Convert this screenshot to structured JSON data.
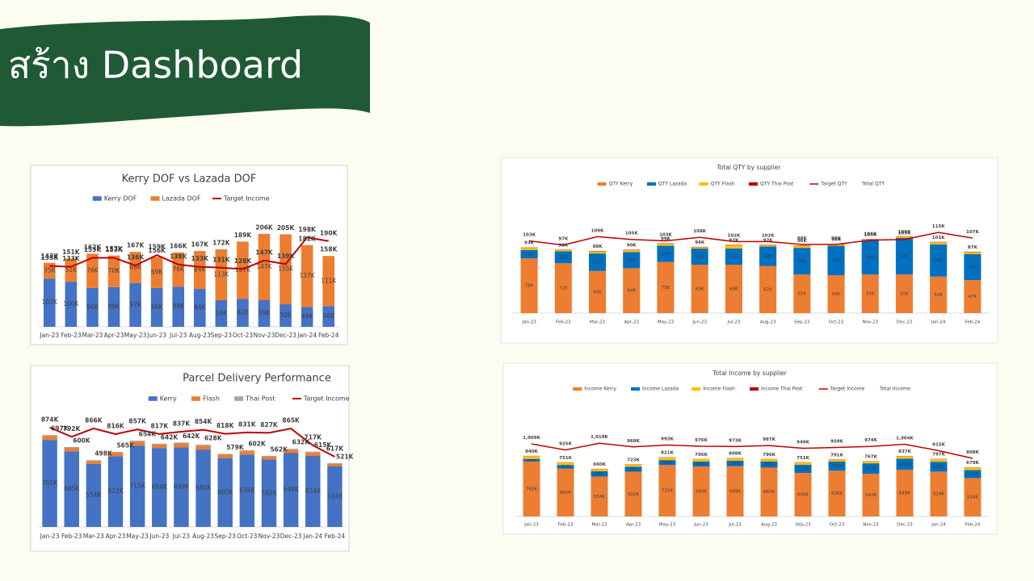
{
  "header": {
    "title": "สร้าง Dashboard"
  },
  "chart_data": [
    {
      "type": "bar",
      "stacked": true,
      "title": "Kerry DOF vs Lazada DOF",
      "categories": [
        "Jan-23",
        "Feb-23",
        "Mar-23",
        "Apr-23",
        "May-23",
        "Jun-23",
        "Jul-23",
        "Aug-23",
        "Sep-23",
        "Oct-23",
        "Nov-23",
        "Dec-23",
        "Jan-24",
        "Feb-24"
      ],
      "ylim": [
        0,
        220
      ],
      "series": [
        {
          "name": "Kerry DOF",
          "type": "bar",
          "color": "#4472c4",
          "values": [
            107,
            100,
            86,
            88,
            97,
            86,
            89,
            84,
            59,
            62,
            59,
            50,
            44,
            46
          ],
          "value_labels": [
            "107K",
            "100K",
            "86K",
            "88K",
            "97K",
            "86K",
            "89K",
            "84K",
            "59K",
            "62K",
            "59K",
            "50K",
            "44K",
            "46K"
          ]
        },
        {
          "name": "Lazada DOF",
          "type": "bar",
          "color": "#ed7d31",
          "values": [
            35,
            51,
            76,
            70,
            69,
            69,
            76,
            84,
            113,
            127,
            147,
            155,
            137,
            111
          ],
          "value_labels": [
            "35K",
            "51K",
            "76K",
            "70K",
            "69K",
            "69K",
            "76K",
            "84K",
            "113K",
            "127K",
            "147K",
            "155K",
            "137K",
            "111K"
          ]
        },
        {
          "name": "Target Income",
          "type": "line",
          "color": "#c00000",
          "values": [
            135,
            133,
            153,
            153,
            136,
            159,
            138,
            133,
            131,
            128,
            147,
            139,
            198,
            190
          ],
          "value_labels": [
            "135K",
            "133K",
            "153K",
            "153K",
            "136K",
            "159K",
            "138K",
            "133K",
            "131K",
            "128K",
            "147K",
            "139K",
            "198K",
            "190K"
          ]
        },
        {
          "type": "label",
          "values": [
            143,
            151,
            162,
            157,
            167,
            156,
            166,
            167,
            172,
            189,
            206,
            205,
            182,
            158
          ],
          "value_labels": [
            "143K",
            "151K",
            "162K",
            "157K",
            "167K",
            "156K",
            "166K",
            "167K",
            "172K",
            "189K",
            "206K",
            "205K",
            "182K",
            "158K"
          ]
        }
      ]
    },
    {
      "type": "bar",
      "stacked": true,
      "title": "Total QTY by supplier",
      "categories": [
        "Jan-23",
        "Feb-23",
        "Mar-23",
        "Apr-23",
        "May-23",
        "Jun-23",
        "Jul-23",
        "Aug-23",
        "Sep-23",
        "Oct-23",
        "Nov-23",
        "Dec-23",
        "Jan-24",
        "Feb-24"
      ],
      "ylim": [
        0,
        130
      ],
      "series": [
        {
          "name": "QTY Kerry",
          "type": "bar",
          "color": "#ed7d31",
          "values": [
            78,
            71,
            60,
            64,
            73,
            69,
            69,
            67,
            55,
            54,
            55,
            55,
            52,
            47
          ],
          "value_labels": [
            "78K",
            "71K",
            "60K",
            "64K",
            "73K",
            "69K",
            "69K",
            "67K",
            "55K",
            "54K",
            "55K",
            "55K",
            "52K",
            "47K"
          ]
        },
        {
          "name": "QTY Lazada",
          "type": "bar",
          "color": "#0070c0",
          "values": [
            12,
            17,
            25,
            23,
            23,
            23,
            23,
            28,
            38,
            42,
            49,
            52,
            46,
            37
          ],
          "value_labels": [
            "12K",
            "17K",
            "25K",
            "23K",
            "23K",
            "23K",
            "23K",
            "28K",
            "38K",
            "42K",
            "49K",
            "52K",
            "46K",
            "37K"
          ]
        },
        {
          "name": "QTY Flash",
          "type": "bar",
          "color": "#ffc000",
          "values": [
            3,
            2,
            3,
            3,
            3,
            2,
            5,
            2,
            3,
            2,
            1,
            2,
            3,
            3
          ]
        },
        {
          "name": "QTY Thai Post",
          "type": "bar",
          "color": "#c00000",
          "values": [
            0.5,
            0.5,
            0.5,
            0.5,
            0.5,
            0.5,
            0.5,
            0.5,
            0.5,
            0.5,
            0.5,
            0.5,
            0.5,
            0.5
          ]
        },
        {
          "name": "Target QTY",
          "type": "line",
          "color": "#c00000",
          "values": [
            103,
            97,
            109,
            105,
            103,
            108,
            102,
            102,
            98,
            98,
            104,
            105,
            115,
            107
          ],
          "value_labels": [
            "103K",
            "97K",
            "109K",
            "105K",
            "103K",
            "108K",
            "102K",
            "102K",
            "98K",
            "98K",
            "104K",
            "105K",
            "115K",
            "107K"
          ]
        },
        {
          "name": "Total QTY",
          "type": "label",
          "values": [
            93,
            90,
            88,
            90,
            99,
            94,
            97,
            97,
            96,
            98,
            105,
            109,
            101,
            87
          ],
          "value_labels": [
            "93K",
            "90K",
            "88K",
            "90K",
            "99K",
            "94K",
            "97K",
            "97K",
            "96K",
            "98K",
            "105K",
            "109K",
            "101K",
            "87K"
          ]
        }
      ]
    },
    {
      "type": "bar",
      "stacked": true,
      "title": "Parcel Delivery Performance",
      "categories": [
        "Jan-23",
        "Feb-23",
        "Mar-23",
        "Apr-23",
        "May-23",
        "Jun-23",
        "Jul-23",
        "Aug-23",
        "Sep-23",
        "Oct-23",
        "Nov-23",
        "Dec-23",
        "Jan-24",
        "Feb-24"
      ],
      "ylim": [
        0,
        1000
      ],
      "series": [
        {
          "name": "Kerry",
          "type": "bar",
          "color": "#4472c4",
          "values": [
            765,
            665,
            554,
            622,
            715,
            694,
            699,
            680,
            605,
            636,
            592,
            649,
            624,
            534
          ],
          "value_labels": [
            "765K",
            "665K",
            "554K",
            "622K",
            "715K",
            "694K",
            "699K",
            "680K",
            "605K",
            "636K",
            "592K",
            "649K",
            "624K",
            "534K"
          ]
        },
        {
          "name": "Flash",
          "type": "bar",
          "color": "#ed7d31",
          "values": [
            35,
            30,
            25,
            30,
            35,
            30,
            35,
            35,
            30,
            30,
            25,
            30,
            30,
            20
          ]
        },
        {
          "name": "Thai Post",
          "type": "bar",
          "color": "#a5a5a5",
          "values": [
            8,
            8,
            8,
            8,
            8,
            8,
            8,
            8,
            8,
            8,
            8,
            8,
            8,
            8
          ]
        },
        {
          "name": "Target Income",
          "type": "line",
          "color": "#c00000",
          "values": [
            874,
            792,
            866,
            816,
            857,
            817,
            837,
            854,
            818,
            831,
            827,
            865,
            717,
            617
          ],
          "value_labels": [
            "874K",
            "792K",
            "866K",
            "816K",
            "857K",
            "817K",
            "837K",
            "854K",
            "818K",
            "831K",
            "827K",
            "865K",
            "717K",
            "617K"
          ]
        },
        {
          "type": "label",
          "values": [
            697,
            600,
            498,
            565,
            654,
            642,
            642,
            628,
            579,
            602,
            562,
            632,
            615,
            521
          ],
          "value_labels": [
            "697K",
            "600K",
            "498K",
            "565K",
            "654K",
            "642K",
            "642K",
            "628K",
            "579K",
            "602K",
            "562K",
            "632K",
            "615K",
            "521K"
          ]
        }
      ]
    },
    {
      "type": "bar",
      "stacked": true,
      "title": "Total Income by supplier",
      "categories": [
        "Jan-23",
        "Feb-23",
        "Mar-23",
        "Apr-23",
        "May-23",
        "Jun-23",
        "Jul-23",
        "Aug-23",
        "Sep-23",
        "Oct-23",
        "Nov-23",
        "Dec-23",
        "Jan-24",
        "Feb-24"
      ],
      "ylim": [
        0,
        1100
      ],
      "series": [
        {
          "name": "Income Kerry",
          "type": "bar",
          "color": "#ed7d31",
          "values": [
            765,
            665,
            554,
            622,
            715,
            694,
            699,
            680,
            605,
            636,
            592,
            649,
            624,
            534
          ],
          "value_labels": [
            "765K",
            "665K",
            "554K",
            "622K",
            "715K",
            "694K",
            "699K",
            "680K",
            "605K",
            "636K",
            "592K",
            "649K",
            "624K",
            "534K"
          ]
        },
        {
          "name": "Income Lazada",
          "type": "bar",
          "color": "#0070c0",
          "values": [
            35,
            51,
            76,
            70,
            69,
            69,
            76,
            84,
            113,
            127,
            147,
            155,
            137,
            111
          ],
          "value_labels": [
            "35K",
            "51K",
            "76K",
            "70K",
            "69K",
            "69K",
            "76K",
            "84K",
            "113K",
            "127K",
            "147K",
            "155K",
            "137K",
            "111K"
          ]
        },
        {
          "name": "Income Flash",
          "type": "bar",
          "color": "#ffc000",
          "values": [
            40,
            35,
            30,
            31,
            37,
            33,
            33,
            32,
            33,
            28,
            28,
            33,
            36,
            34
          ]
        },
        {
          "name": "Income Thai Post",
          "type": "bar",
          "color": "#c00000",
          "values": [
            3,
            3,
            3,
            3,
            3,
            3,
            3,
            3,
            3,
            3,
            3,
            3,
            3,
            3
          ]
        },
        {
          "name": "Target Income",
          "type": "line",
          "color": "#c00000",
          "values": [
            1009,
            925,
            1019,
            968,
            993,
            976,
            973,
            987,
            949,
            959,
            974,
            1004,
            915,
            808
          ],
          "value_labels": [
            "1,009K",
            "925K",
            "1,019K",
            "968K",
            "993K",
            "976K",
            "973K",
            "987K",
            "949K",
            "959K",
            "974K",
            "1,004K",
            "915K",
            "808K"
          ]
        },
        {
          "name": "Total Income",
          "type": "label",
          "values": [
            840,
            751,
            660,
            723,
            821,
            796,
            808,
            796,
            751,
            791,
            767,
            837,
            797,
            679
          ],
          "value_labels": [
            "840K",
            "751K",
            "660K",
            "723K",
            "821K",
            "796K",
            "808K",
            "796K",
            "751K",
            "791K",
            "767K",
            "837K",
            "797K",
            "679K"
          ]
        }
      ]
    }
  ]
}
